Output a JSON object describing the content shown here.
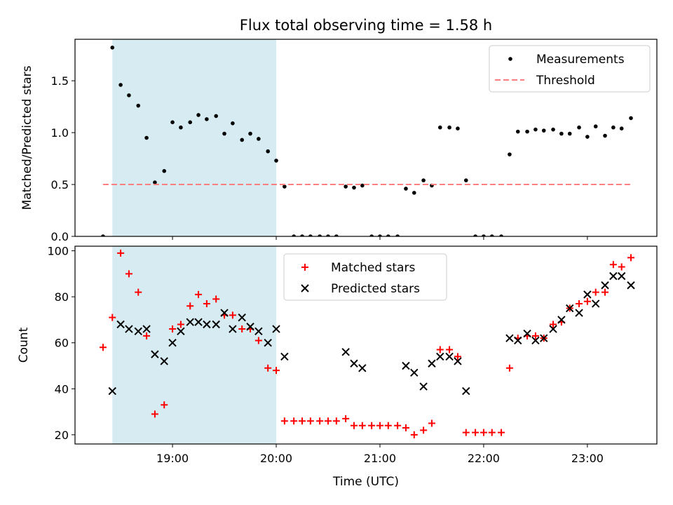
{
  "figure": {
    "title": "Flux total observing time = 1.58 h",
    "xlabel": "Time (UTC)",
    "x_ticks": [
      "19:00",
      "20:00",
      "21:00",
      "22:00",
      "23:00"
    ],
    "x_tick_values": [
      19.0,
      20.0,
      21.0,
      22.0,
      23.0
    ],
    "xlim": [
      18.06,
      23.67
    ],
    "shaded_span": [
      18.42,
      20.0
    ],
    "shade_color": "#add8e6"
  },
  "chart_data": [
    {
      "type": "scatter",
      "id": "ratio",
      "title": "Flux total observing time = 1.58 h",
      "xlabel": "",
      "ylabel": "Matched/Predicted stars",
      "ylim": [
        0,
        1.9
      ],
      "y_ticks": [
        0.0,
        0.5,
        1.0,
        1.5
      ],
      "y_tick_labels": [
        "0.0",
        "0.5",
        "1.0",
        "1.5"
      ],
      "legend": {
        "position": "top-right",
        "entries": [
          "Measurements",
          "Threshold"
        ]
      },
      "series": [
        {
          "name": "Measurements",
          "color": "#000000",
          "marker": "dot",
          "x": [
            18.33,
            18.42,
            18.5,
            18.58,
            18.67,
            18.75,
            18.83,
            18.92,
            19.0,
            19.08,
            19.17,
            19.25,
            19.33,
            19.42,
            19.5,
            19.58,
            19.67,
            19.75,
            19.83,
            19.92,
            20.0,
            20.08,
            20.17,
            20.25,
            20.33,
            20.42,
            20.5,
            20.58,
            20.67,
            20.75,
            20.83,
            20.92,
            21.0,
            21.08,
            21.17,
            21.25,
            21.33,
            21.42,
            21.5,
            21.58,
            21.67,
            21.75,
            21.83,
            21.92,
            22.0,
            22.08,
            22.17,
            22.25,
            22.33,
            22.42,
            22.5,
            22.58,
            22.67,
            22.75,
            22.83,
            22.92,
            23.0,
            23.08,
            23.17,
            23.25,
            23.33,
            23.42
          ],
          "y": [
            0.0,
            1.82,
            1.46,
            1.36,
            1.26,
            0.95,
            0.52,
            0.63,
            1.1,
            1.05,
            1.1,
            1.17,
            1.13,
            1.16,
            0.99,
            1.09,
            0.93,
            0.99,
            0.94,
            0.82,
            0.73,
            0.48,
            0.0,
            0.0,
            0.0,
            0.0,
            0.0,
            0.0,
            0.48,
            0.47,
            0.49,
            0.0,
            0.0,
            0.0,
            0.0,
            0.46,
            0.42,
            0.54,
            0.49,
            1.05,
            1.05,
            1.04,
            0.54,
            0.0,
            0.0,
            0.0,
            0.0,
            0.79,
            1.01,
            1.01,
            1.03,
            1.02,
            1.03,
            0.99,
            0.99,
            1.05,
            0.96,
            1.06,
            0.97,
            1.05,
            1.04,
            1.14
          ]
        },
        {
          "name": "Threshold",
          "color": "#ff7f7f",
          "style": "dashed",
          "x": [
            18.33,
            23.42
          ],
          "y": [
            0.5,
            0.5
          ]
        }
      ]
    },
    {
      "type": "scatter",
      "id": "counts",
      "title": "",
      "xlabel": "Time (UTC)",
      "ylabel": "Count",
      "ylim": [
        16,
        102
      ],
      "y_ticks": [
        20,
        40,
        60,
        80,
        100
      ],
      "y_tick_labels": [
        "20",
        "40",
        "60",
        "80",
        "100"
      ],
      "legend": {
        "position": "top-center",
        "entries": [
          "Matched stars",
          "Predicted stars"
        ]
      },
      "series": [
        {
          "name": "Matched stars",
          "color": "#ff0000",
          "marker": "plus",
          "x": [
            18.33,
            18.42,
            18.5,
            18.58,
            18.67,
            18.75,
            18.83,
            18.92,
            19.0,
            19.08,
            19.17,
            19.25,
            19.33,
            19.42,
            19.5,
            19.58,
            19.67,
            19.75,
            19.83,
            19.92,
            20.0,
            20.08,
            20.17,
            20.25,
            20.33,
            20.42,
            20.5,
            20.58,
            20.67,
            20.75,
            20.83,
            20.92,
            21.0,
            21.08,
            21.17,
            21.25,
            21.33,
            21.42,
            21.5,
            21.58,
            21.67,
            21.75,
            21.83,
            21.92,
            22.0,
            22.08,
            22.17,
            22.25,
            22.33,
            22.42,
            22.5,
            22.58,
            22.67,
            22.75,
            22.83,
            22.92,
            23.0,
            23.08,
            23.17,
            23.25,
            23.33,
            23.42
          ],
          "y": [
            58,
            71,
            99,
            90,
            82,
            63,
            29,
            33,
            66,
            68,
            76,
            81,
            77,
            79,
            72,
            72,
            66,
            66,
            61,
            49,
            48,
            26,
            26,
            26,
            26,
            26,
            26,
            26,
            27,
            24,
            24,
            24,
            24,
            24,
            24,
            23,
            20,
            22,
            25,
            57,
            57,
            54,
            21,
            21,
            21,
            21,
            21,
            49,
            62,
            63,
            63,
            62,
            68,
            69,
            75,
            77,
            78,
            82,
            82,
            94,
            93,
            97
          ]
        },
        {
          "name": "Predicted stars",
          "color": "#000000",
          "marker": "x",
          "x": [
            18.42,
            18.5,
            18.58,
            18.67,
            18.75,
            18.83,
            18.92,
            19.0,
            19.08,
            19.17,
            19.25,
            19.33,
            19.42,
            19.5,
            19.58,
            19.67,
            19.75,
            19.83,
            19.92,
            20.0,
            20.08,
            20.67,
            20.75,
            20.83,
            21.25,
            21.33,
            21.42,
            21.5,
            21.58,
            21.67,
            21.75,
            21.83,
            22.25,
            22.33,
            22.42,
            22.5,
            22.58,
            22.67,
            22.75,
            22.83,
            22.92,
            23.0,
            23.08,
            23.17,
            23.25,
            23.33,
            23.42
          ],
          "y": [
            39,
            68,
            66,
            65,
            66,
            55,
            52,
            60,
            65,
            69,
            69,
            68,
            68,
            73,
            66,
            71,
            67,
            65,
            60,
            66,
            54,
            56,
            51,
            49,
            50,
            47,
            41,
            51,
            54,
            54,
            52,
            39,
            62,
            61,
            64,
            61,
            62,
            66,
            70,
            75,
            73,
            81,
            77,
            85,
            89,
            89,
            85
          ]
        }
      ]
    }
  ]
}
